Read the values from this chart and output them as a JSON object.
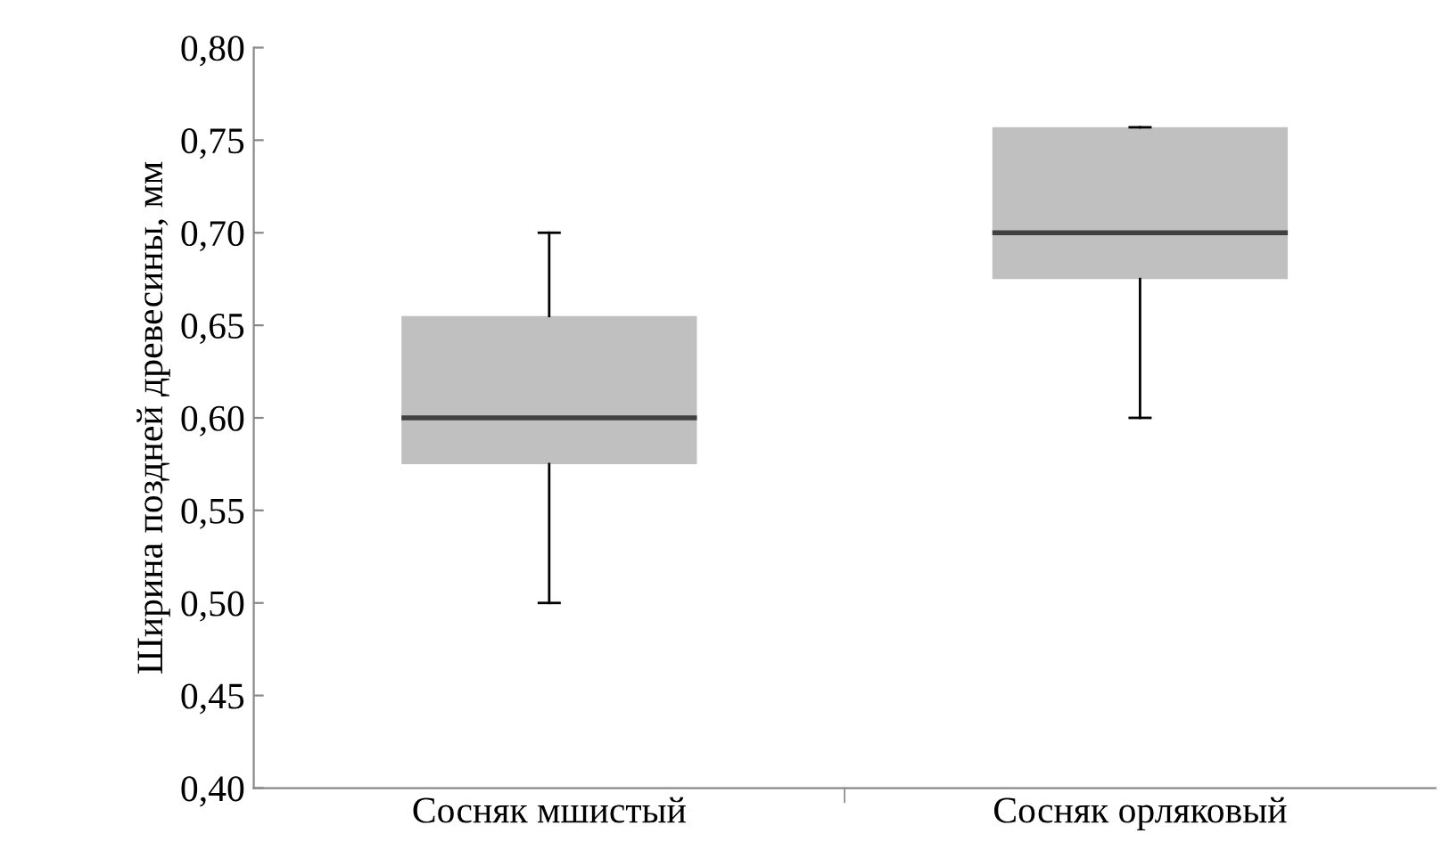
{
  "chart_data": {
    "type": "box",
    "ylabel": "Ширина поздней древесины, мм",
    "categories": [
      "Сосняк мшистый",
      "Сосняк орляковый"
    ],
    "boxes": [
      {
        "low": 0.5,
        "q1": 0.575,
        "median": 0.6,
        "q3": 0.655,
        "high": 0.7
      },
      {
        "low": 0.6,
        "q1": 0.675,
        "median": 0.7,
        "q3": 0.757,
        "high": 0.757
      }
    ],
    "color": "#c0c0c0",
    "ylim": [
      0.4,
      0.8
    ],
    "yticks": [
      {
        "value": 0.4,
        "label": "0,40"
      },
      {
        "value": 0.45,
        "label": "0,45"
      },
      {
        "value": 0.5,
        "label": "0,50"
      },
      {
        "value": 0.55,
        "label": "0,55"
      },
      {
        "value": 0.6,
        "label": "0,60"
      },
      {
        "value": 0.65,
        "label": "0,65"
      },
      {
        "value": 0.7,
        "label": "0,70"
      },
      {
        "value": 0.75,
        "label": "0,75"
      },
      {
        "value": 0.8,
        "label": "0,80"
      }
    ],
    "grid": false
  }
}
